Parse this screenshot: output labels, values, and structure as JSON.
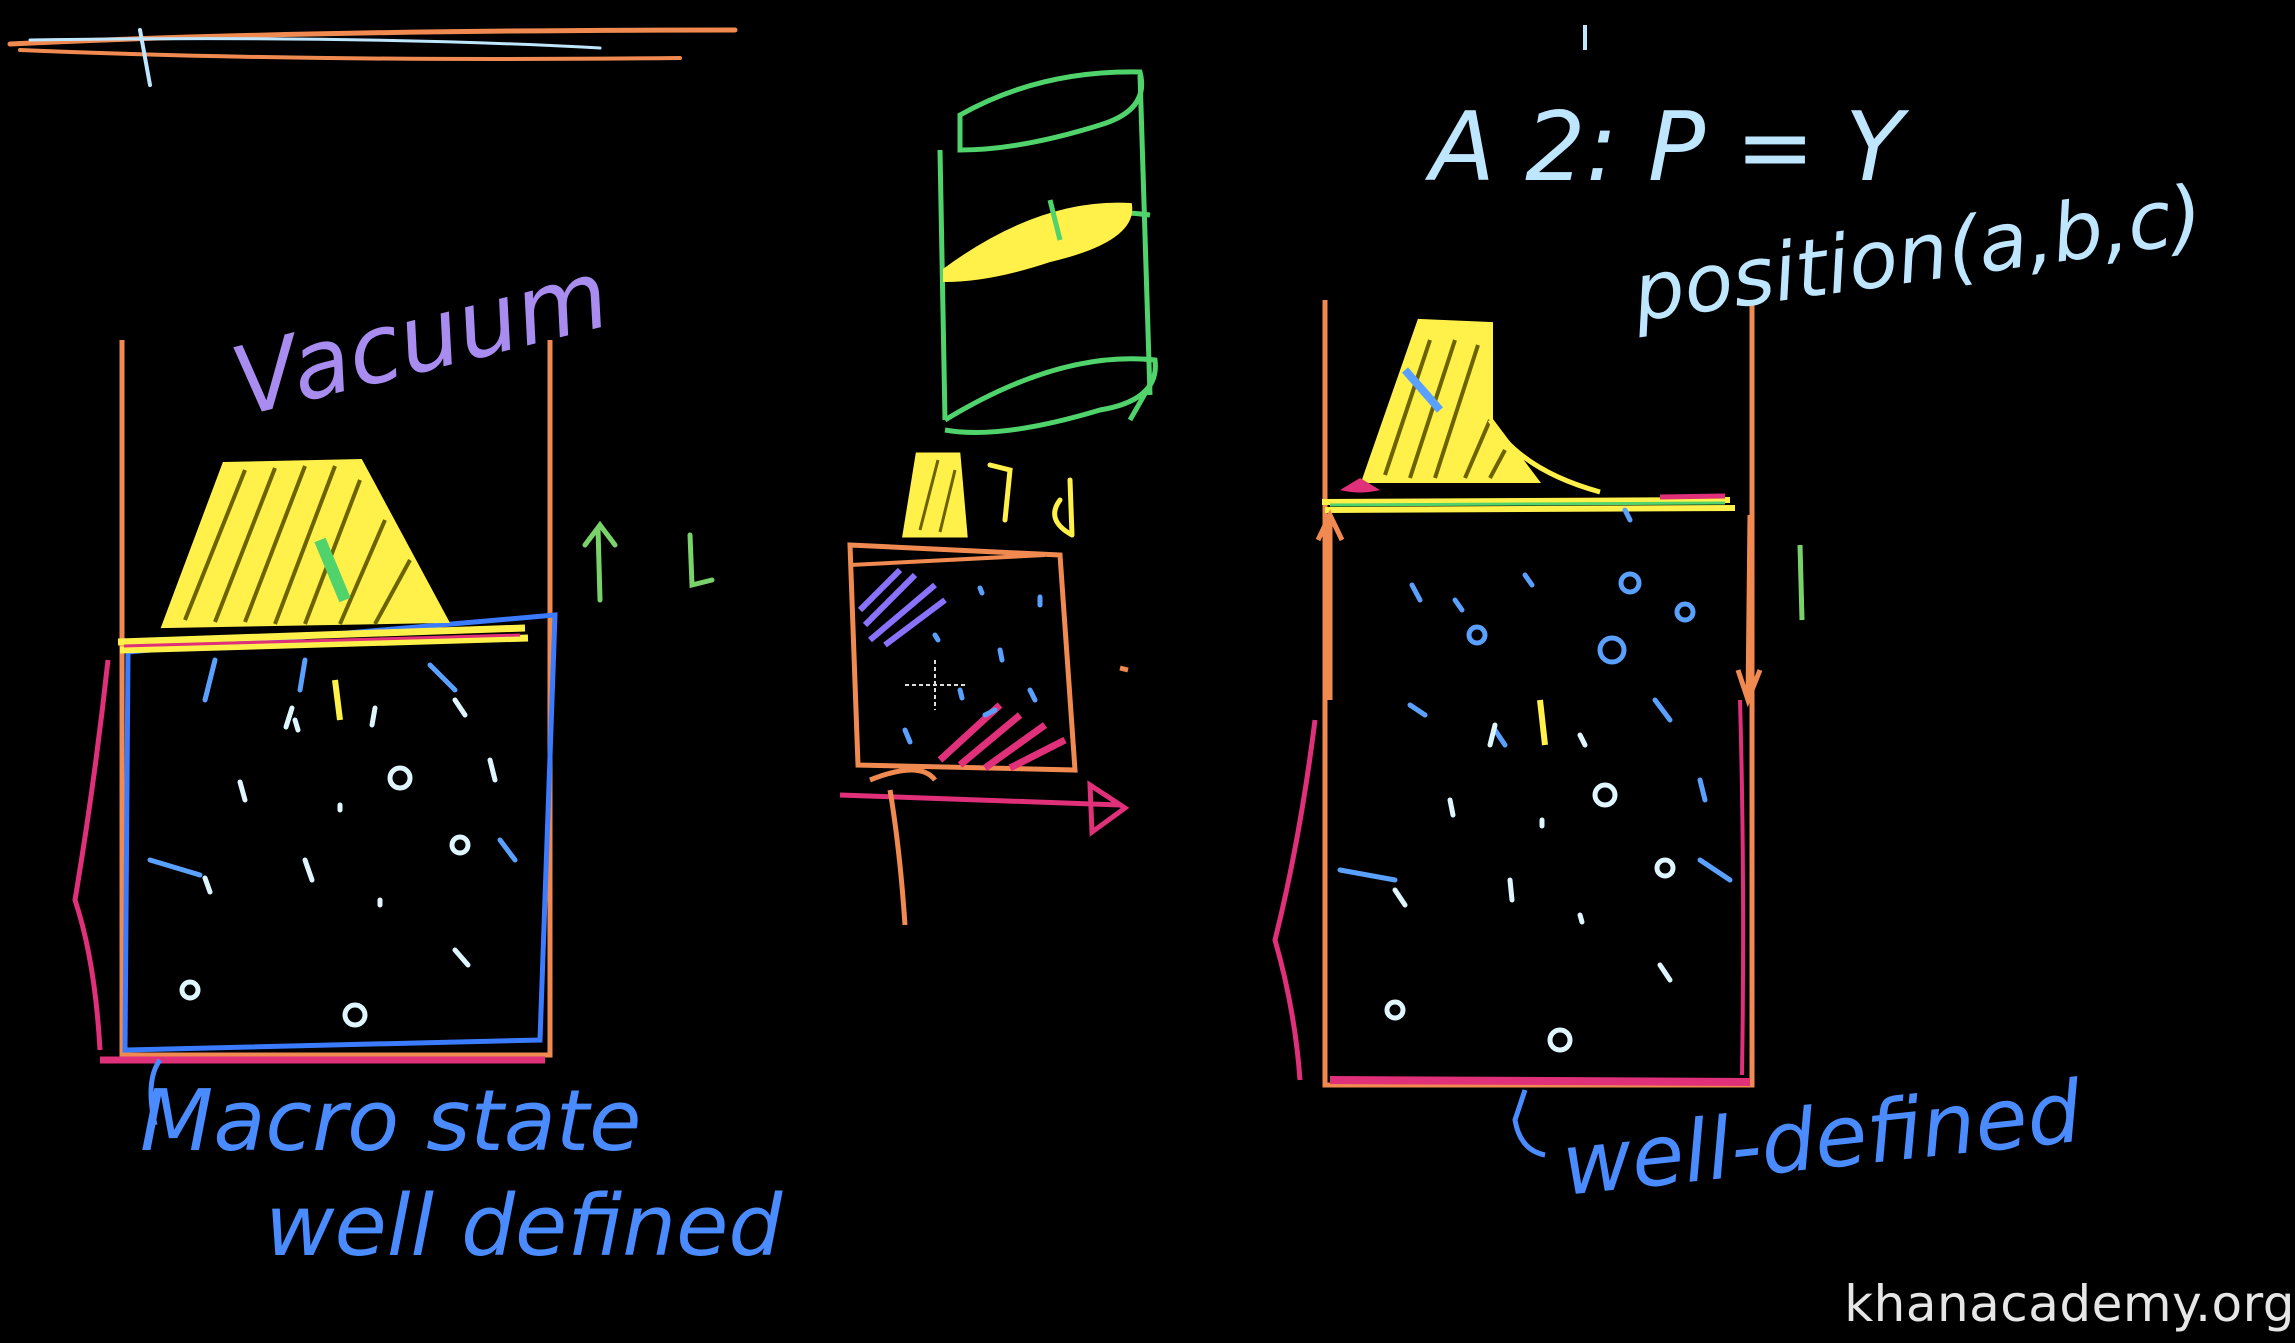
{
  "labels": {
    "vacuum": "Vacuum",
    "macro_state_line1": "Macro state",
    "macro_state_line2": "well defined",
    "a2_line1": "A 2: P = Y",
    "a2_line2": "position(a,b,c)",
    "well_defined": "well-defined",
    "small_d": "d"
  },
  "watermark": "khanacademy.org",
  "colors": {
    "background": "#000000",
    "container": "#f08a50",
    "weight": "#fff04a",
    "molecule": "#dff6ff",
    "molecule_blue": "#5aa0ff",
    "pressure": "#e0307a",
    "boundary": "#3a7bff",
    "vacuum_text": "#a98cf0",
    "pointer": "#7ad36a",
    "text_cyan": "#bfe6ff",
    "text_blue": "#4a8cff"
  }
}
